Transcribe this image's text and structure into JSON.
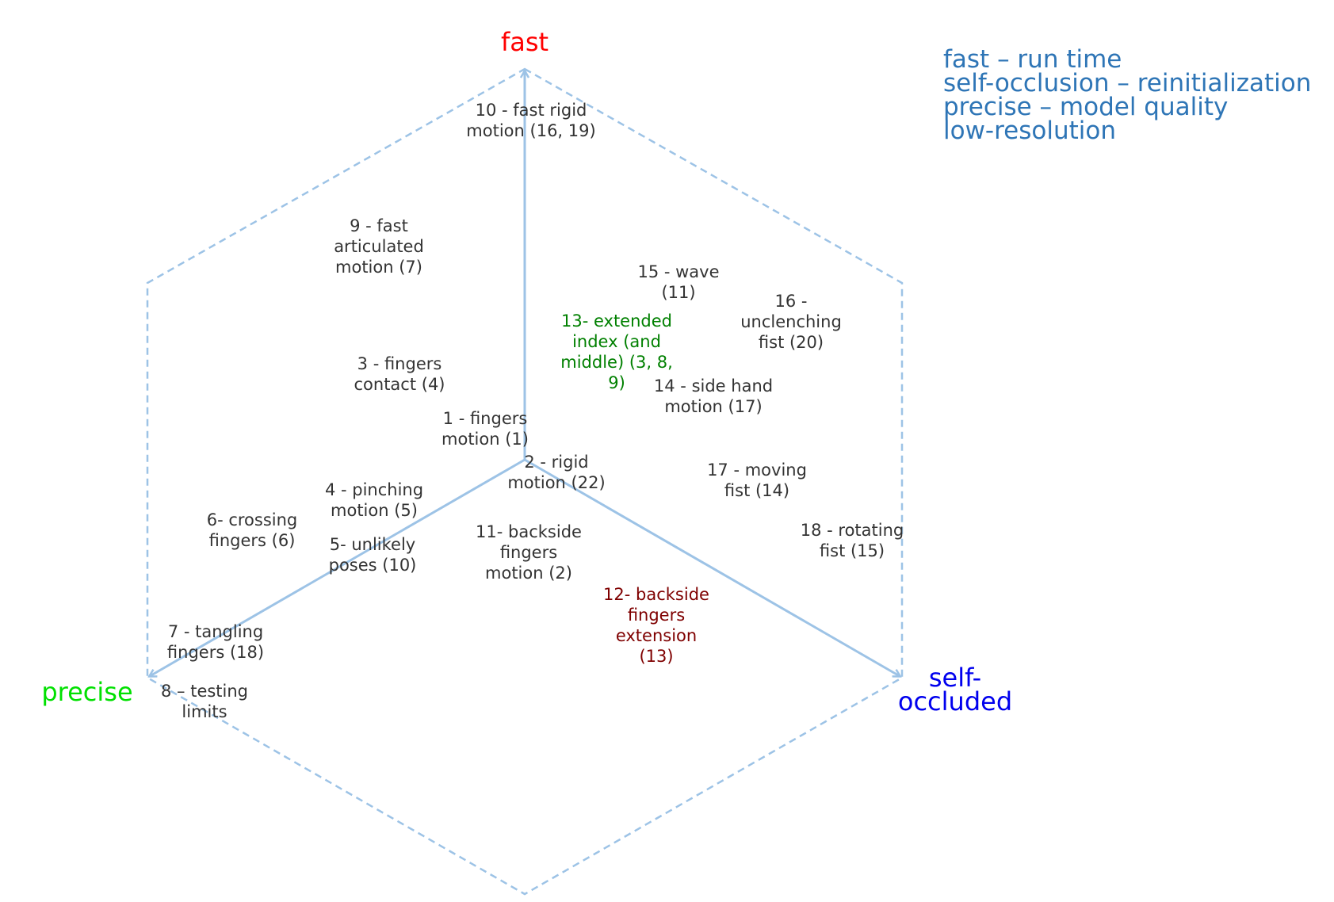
{
  "axes": {
    "fast": {
      "label": "fast",
      "color": "#ff0000"
    },
    "precise": {
      "label": "precise",
      "color": "#00e000"
    },
    "self_occluded": {
      "label": "self-\noccluded",
      "color": "#0000ee"
    }
  },
  "legend": {
    "color": "#2e75b6",
    "lines": [
      "fast – run time",
      "self-occlusion – reinitialization",
      "precise – model quality",
      "low-resolution"
    ]
  },
  "colors": {
    "frame": "#9dc3e6",
    "axis_arrow": "#9dc3e6",
    "default_text": "#333333",
    "highlight_green": "#008000",
    "highlight_dark_red": "#7f0000"
  },
  "items": [
    {
      "id": "10",
      "text": "10 - fast rigid\nmotion (16, 19)"
    },
    {
      "id": "9",
      "text": "9 - fast\narticulated\nmotion (7)"
    },
    {
      "id": "15",
      "text": "15 - wave\n(11)"
    },
    {
      "id": "16",
      "text": "16 -\nunclenching\nfist (20)"
    },
    {
      "id": "13",
      "text": "13- extended\nindex (and\nmiddle) (3, 8,\n9)",
      "highlight": "green"
    },
    {
      "id": "3",
      "text": "3 - fingers\ncontact (4)"
    },
    {
      "id": "14",
      "text": "14 - side hand\nmotion (17)"
    },
    {
      "id": "1",
      "text": "1 - fingers\nmotion (1)"
    },
    {
      "id": "2",
      "text": "2 - rigid\nmotion (22)"
    },
    {
      "id": "17",
      "text": "17 - moving\nfist (14)"
    },
    {
      "id": "4",
      "text": "4 - pinching\nmotion (5)"
    },
    {
      "id": "6",
      "text": "6- crossing\nfingers (6)"
    },
    {
      "id": "5",
      "text": "5- unlikely\nposes (10)"
    },
    {
      "id": "11",
      "text": "11- backside\nfingers\nmotion (2)"
    },
    {
      "id": "18",
      "text": "18 - rotating\nfist (15)"
    },
    {
      "id": "12",
      "text": "12- backside\nfingers\nextension\n(13)",
      "highlight": "dark_red"
    },
    {
      "id": "7",
      "text": "7 - tangling\nfingers (18)"
    },
    {
      "id": "8",
      "text": "8 – testing\nlimits"
    }
  ]
}
